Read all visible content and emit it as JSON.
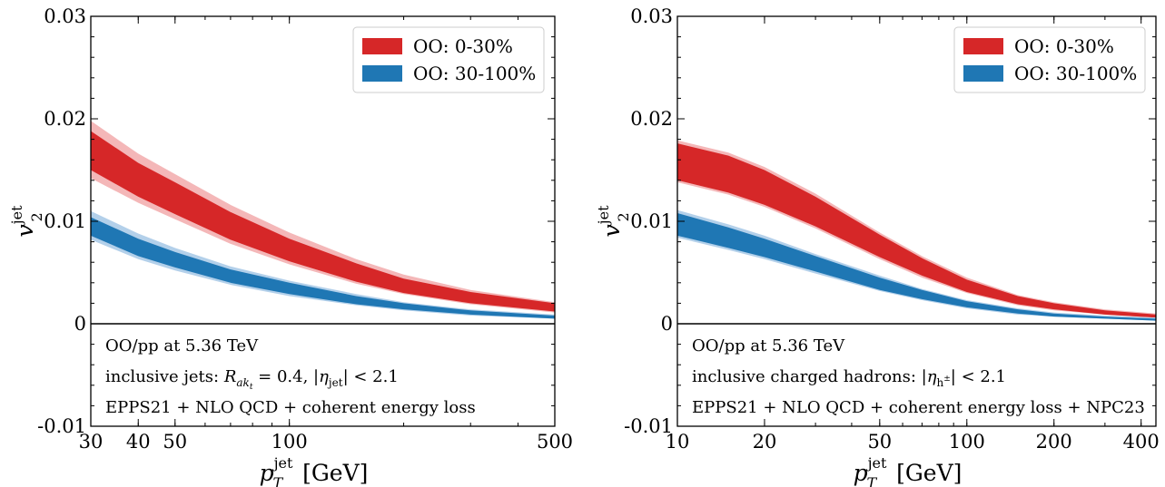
{
  "chart_data": [
    {
      "type": "area",
      "x_scale": "log",
      "xlim": [
        30,
        500
      ],
      "ylim": [
        -0.01,
        0.03
      ],
      "xticks": [
        30,
        40,
        50,
        100,
        500
      ],
      "xtick_labels": [
        "30",
        "40",
        "50",
        "100",
        "500"
      ],
      "yticks": [
        -0.01,
        0,
        0.01,
        0.02,
        0.03
      ],
      "ytick_labels": [
        "-0.01",
        "0",
        "0.01",
        "0.02",
        "0.03"
      ],
      "xlabel": "p_T^jet [GeV]",
      "xlabel_main": "p",
      "xlabel_sup": "jet",
      "xlabel_sub": "T",
      "xlabel_unit": "[GeV]",
      "ylabel": "v_2^jet",
      "ylabel_main": "v",
      "ylabel_sup": "jet",
      "ylabel_sub": "2",
      "legend_position": "top-right",
      "annotations": [
        "OO/pp at 5.36 TeV",
        "inclusive jets: R_akt = 0.4, |η_jet| < 2.1",
        "EPPS21 + NLO QCD + coherent energy loss"
      ],
      "series": [
        {
          "name": "OO: 0-30%",
          "color": "#d62728",
          "light_color": "#f4b7b8",
          "x": [
            30,
            40,
            50,
            70,
            100,
            150,
            200,
            300,
            500
          ],
          "outer_lower": [
            0.0142,
            0.0118,
            0.0102,
            0.0078,
            0.0058,
            0.0039,
            0.0029,
            0.0019,
            0.0011
          ],
          "inner_lower": [
            0.015,
            0.0124,
            0.0107,
            0.0082,
            0.0061,
            0.0041,
            0.003,
            0.002,
            0.0012
          ],
          "inner_upper": [
            0.0188,
            0.0157,
            0.0138,
            0.0109,
            0.0083,
            0.0059,
            0.0044,
            0.0031,
            0.002
          ],
          "outer_upper": [
            0.0198,
            0.0166,
            0.0146,
            0.0116,
            0.0089,
            0.0063,
            0.0048,
            0.0033,
            0.0021
          ]
        },
        {
          "name": "OO: 30-100%",
          "color": "#1f77b4",
          "light_color": "#b3d0ea",
          "x": [
            30,
            40,
            50,
            70,
            100,
            150,
            200,
            300,
            500
          ],
          "outer_lower": [
            0.0082,
            0.0063,
            0.0052,
            0.0038,
            0.0027,
            0.0018,
            0.0013,
            0.0008,
            0.0005
          ],
          "inner_lower": [
            0.0086,
            0.0066,
            0.0055,
            0.004,
            0.0029,
            0.0019,
            0.0014,
            0.0009,
            0.0005
          ],
          "inner_upper": [
            0.0104,
            0.0083,
            0.007,
            0.0053,
            0.004,
            0.0027,
            0.002,
            0.0013,
            0.0008
          ],
          "outer_upper": [
            0.011,
            0.0088,
            0.0074,
            0.0056,
            0.0042,
            0.0029,
            0.0021,
            0.0014,
            0.0009
          ]
        }
      ]
    },
    {
      "type": "area",
      "x_scale": "log",
      "xlim": [
        10,
        450
      ],
      "ylim": [
        -0.01,
        0.03
      ],
      "xticks": [
        10,
        20,
        50,
        100,
        200,
        400
      ],
      "xtick_labels": [
        "10",
        "20",
        "50",
        "100",
        "200",
        "400"
      ],
      "yticks": [
        -0.01,
        0,
        0.01,
        0.02,
        0.03
      ],
      "ytick_labels": [
        "-0.01",
        "0",
        "0.01",
        "0.02",
        "0.03"
      ],
      "xlabel": "p_T^jet [GeV]",
      "xlabel_main": "p",
      "xlabel_sup": "jet",
      "xlabel_sub": "T",
      "xlabel_unit": "[GeV]",
      "ylabel": "v_2^jet",
      "ylabel_main": "v",
      "ylabel_sup": "jet",
      "ylabel_sub": "2",
      "legend_position": "top-right",
      "annotations": [
        "OO/pp at 5.36 TeV",
        "inclusive charged hadrons: |η_h±| < 2.1",
        "EPPS21 + NLO QCD + coherent energy loss + NPC23"
      ],
      "series": [
        {
          "name": "OO: 0-30%",
          "color": "#d62728",
          "light_color": "#f4b7b8",
          "x": [
            10,
            15,
            20,
            30,
            50,
            70,
            100,
            150,
            200,
            300,
            450
          ],
          "outer_lower": [
            0.0138,
            0.0126,
            0.0114,
            0.0093,
            0.0063,
            0.0045,
            0.003,
            0.0018,
            0.0013,
            0.0009,
            0.0006
          ],
          "inner_lower": [
            0.014,
            0.0128,
            0.0116,
            0.0095,
            0.0065,
            0.0047,
            0.0031,
            0.0019,
            0.0014,
            0.0009,
            0.0006
          ],
          "inner_upper": [
            0.0176,
            0.0164,
            0.015,
            0.0124,
            0.0087,
            0.0064,
            0.0043,
            0.0027,
            0.002,
            0.0013,
            0.0009
          ],
          "outer_upper": [
            0.0179,
            0.0167,
            0.0153,
            0.0127,
            0.0089,
            0.0066,
            0.0045,
            0.0028,
            0.0021,
            0.0014,
            0.001
          ]
        },
        {
          "name": "OO: 30-100%",
          "color": "#1f77b4",
          "light_color": "#b3d0ea",
          "x": [
            10,
            15,
            20,
            30,
            50,
            70,
            100,
            150,
            200,
            300,
            450
          ],
          "outer_lower": [
            0.0084,
            0.0072,
            0.0063,
            0.0049,
            0.0032,
            0.0023,
            0.0015,
            0.0009,
            0.0007,
            0.0005,
            0.0003
          ],
          "inner_lower": [
            0.0086,
            0.0074,
            0.0065,
            0.0051,
            0.0033,
            0.0024,
            0.0016,
            0.001,
            0.0007,
            0.0005,
            0.0003
          ],
          "inner_upper": [
            0.0108,
            0.0094,
            0.0083,
            0.0066,
            0.0045,
            0.0033,
            0.0022,
            0.0014,
            0.001,
            0.0007,
            0.0005
          ],
          "outer_upper": [
            0.0111,
            0.0097,
            0.0086,
            0.0068,
            0.0047,
            0.0034,
            0.0023,
            0.0015,
            0.0011,
            0.0008,
            0.0006
          ]
        }
      ]
    }
  ]
}
